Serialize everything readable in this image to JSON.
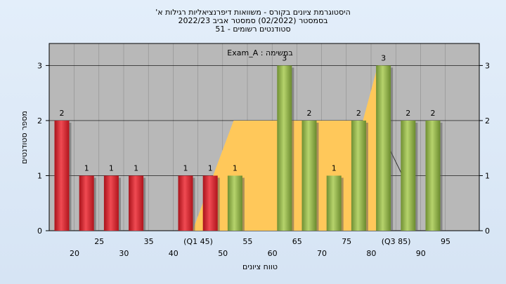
{
  "header": {
    "line1": "היסטוגרמת ציונים בקורס - משוואות דיפרנציאליות רגילות א'",
    "line2": "בסמסטר  (02/2022)  סמסטר אביב 2022/23",
    "line3": "סטודנטים רשומים - 51"
  },
  "legend_text": "במשימה : Exam_A",
  "chart_data": {
    "type": "bar",
    "title": "היסטוגרמת ציונים בקורס - משוואות דיפרנציאליות רגילות א'",
    "xlabel": "טווח ציונים",
    "ylabel": "מספר סטודנטים",
    "ylim": [
      0,
      3.4
    ],
    "yticks": [
      0,
      1,
      2,
      3
    ],
    "grid": true,
    "categories": [
      "20",
      "25",
      "30",
      "35",
      "40",
      "45",
      "50",
      "55",
      "60",
      "65",
      "70",
      "75",
      "80",
      "85",
      "90",
      "95"
    ],
    "tick_labels": [
      "20",
      "25",
      "30",
      "35",
      "40",
      "(Q1 45)",
      "50",
      "55",
      "60",
      "65",
      "70",
      "75",
      "80",
      "(Q3 85)",
      "90",
      "95"
    ],
    "values": [
      2,
      1,
      1,
      1,
      0,
      1,
      1,
      1,
      0,
      3,
      2,
      1,
      2,
      3,
      2,
      2
    ],
    "colors": [
      "red",
      "red",
      "red",
      "red",
      "red",
      "red",
      "red",
      "green",
      "green",
      "green",
      "green",
      "green",
      "green",
      "green",
      "green",
      "green"
    ],
    "data_labels": [
      "2",
      "1",
      "1",
      "1",
      "",
      "1",
      "1",
      "1",
      "",
      "3",
      "2",
      "1",
      "2",
      "3",
      "2",
      "2"
    ],
    "band_colors": {
      "red": "#e8202a",
      "green": "#8fb54a",
      "quartile_band": "#ffc85a",
      "plot_bg": "#b8b8b8"
    }
  }
}
